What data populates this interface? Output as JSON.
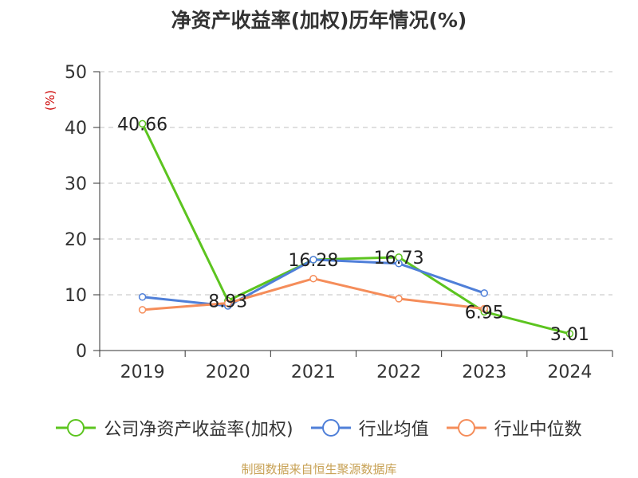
{
  "title": "净资产收益率(加权)历年情况(%)",
  "source": "制图数据来自恒生聚源数据库",
  "colors": {
    "company": "#5cc41f",
    "industry_avg": "#4f7fd8",
    "industry_median": "#f58d5a",
    "grid": "#c0c0c0",
    "axis": "#333333",
    "ylabel": "#cc0000"
  },
  "chart_data": {
    "type": "line",
    "title": "净资产收益率(加权)历年情况(%)",
    "ylabel": "(%)",
    "xlabel": "",
    "ylim": [
      0,
      50
    ],
    "yticks": [
      0,
      10,
      20,
      30,
      40,
      50
    ],
    "grid": "horizontal dashed",
    "legend_position": "bottom",
    "categories": [
      "2019",
      "2020",
      "2021",
      "2022",
      "2023",
      "2024"
    ],
    "series": [
      {
        "name": "公司净资产收益率(加权)",
        "color": "#5cc41f",
        "values": [
          40.66,
          8.93,
          16.28,
          16.73,
          6.95,
          3.01
        ],
        "labels": [
          "40.66",
          "8.93",
          "16.28",
          "16.73",
          "6.95",
          "3.01"
        ]
      },
      {
        "name": "行业均值",
        "color": "#4f7fd8",
        "values": [
          9.6,
          8.0,
          16.3,
          15.6,
          10.3,
          null
        ]
      },
      {
        "name": "行业中位数",
        "color": "#f58d5a",
        "values": [
          7.3,
          8.5,
          12.9,
          9.3,
          7.5,
          null
        ]
      }
    ]
  }
}
